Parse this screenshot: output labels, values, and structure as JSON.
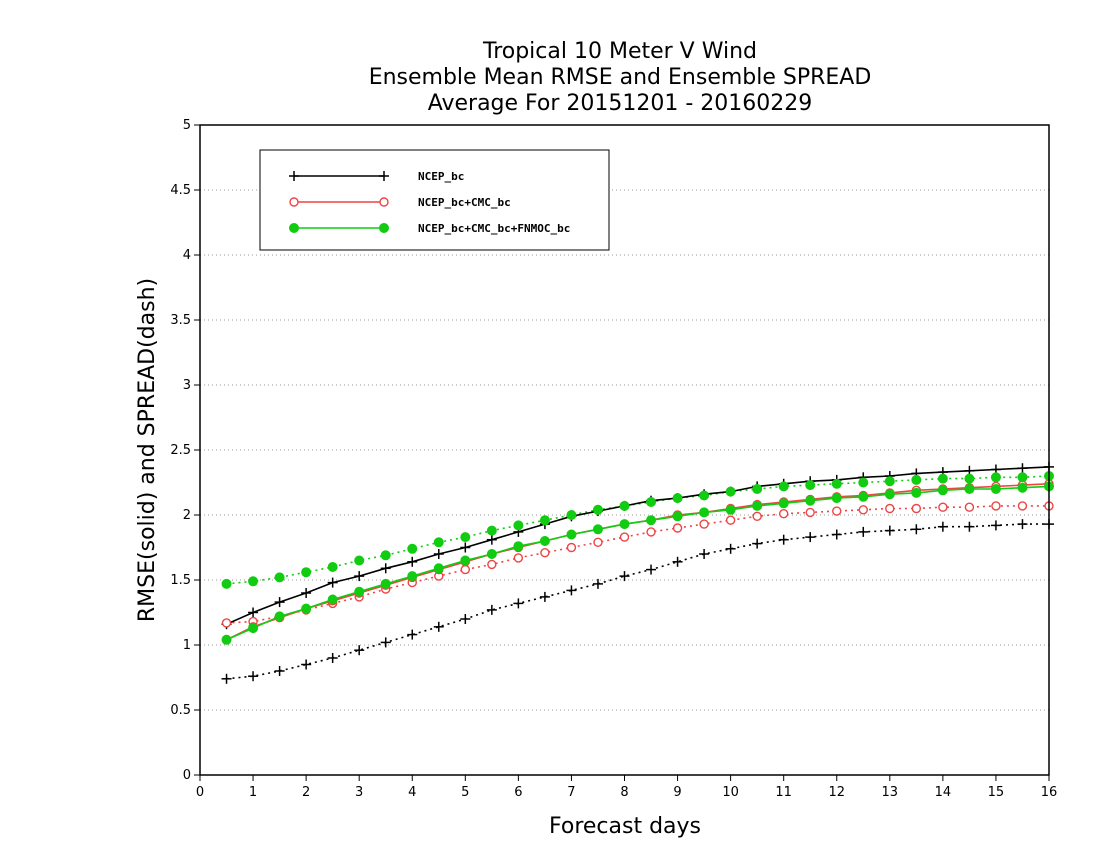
{
  "chart_data": {
    "type": "line",
    "title": [
      "Tropical 10 Meter V Wind",
      "Ensemble Mean RMSE and Ensemble SPREAD",
      "Average For 20151201 - 20160229"
    ],
    "xlabel": "Forecast days",
    "ylabel": "RMSE(solid) and SPREAD(dash)",
    "xlim": [
      0,
      16
    ],
    "ylim": [
      0,
      5
    ],
    "xticks": [
      "0",
      "1",
      "2",
      "3",
      "4",
      "5",
      "6",
      "7",
      "8",
      "9",
      "10",
      "11",
      "12",
      "13",
      "14",
      "15",
      "16"
    ],
    "yticks": [
      "0",
      "0.5",
      "1",
      "1.5",
      "2",
      "2.5",
      "3",
      "3.5",
      "4",
      "4.5",
      "5"
    ],
    "grid": "horizontal dotted",
    "legend_position": "top-left",
    "x": [
      0.5,
      1,
      1.5,
      2,
      2.5,
      3,
      3.5,
      4,
      4.5,
      5,
      5.5,
      6,
      6.5,
      7,
      7.5,
      8,
      8.5,
      9,
      9.5,
      10,
      10.5,
      11,
      11.5,
      12,
      12.5,
      13,
      13.5,
      14,
      14.5,
      15,
      15.5,
      16
    ],
    "series": [
      {
        "name": "NCEP_bc",
        "color": "#000000",
        "marker": "plus",
        "rmse": [
          1.16,
          1.25,
          1.33,
          1.4,
          1.48,
          1.53,
          1.59,
          1.64,
          1.7,
          1.75,
          1.81,
          1.87,
          1.93,
          1.99,
          2.03,
          2.07,
          2.11,
          2.13,
          2.16,
          2.18,
          2.22,
          2.24,
          2.26,
          2.27,
          2.29,
          2.3,
          2.32,
          2.33,
          2.34,
          2.35,
          2.36,
          2.37
        ],
        "spread": [
          0.74,
          0.76,
          0.8,
          0.85,
          0.9,
          0.96,
          1.02,
          1.08,
          1.14,
          1.2,
          1.27,
          1.32,
          1.37,
          1.42,
          1.47,
          1.53,
          1.58,
          1.64,
          1.7,
          1.74,
          1.78,
          1.81,
          1.83,
          1.85,
          1.87,
          1.88,
          1.89,
          1.91,
          1.91,
          1.92,
          1.93,
          1.93
        ]
      },
      {
        "name": "NCEP_bc+CMC_bc",
        "color": "#ee4444",
        "marker": "open-circle",
        "rmse": [
          1.04,
          1.14,
          1.21,
          1.28,
          1.34,
          1.4,
          1.46,
          1.52,
          1.58,
          1.64,
          1.7,
          1.75,
          1.8,
          1.85,
          1.89,
          1.93,
          1.96,
          2.0,
          2.02,
          2.05,
          2.08,
          2.1,
          2.12,
          2.14,
          2.15,
          2.17,
          2.19,
          2.2,
          2.21,
          2.22,
          2.23,
          2.24
        ],
        "spread": [
          1.17,
          1.18,
          1.22,
          1.27,
          1.32,
          1.37,
          1.43,
          1.48,
          1.53,
          1.58,
          1.62,
          1.67,
          1.71,
          1.75,
          1.79,
          1.83,
          1.87,
          1.9,
          1.93,
          1.96,
          1.99,
          2.01,
          2.02,
          2.03,
          2.04,
          2.05,
          2.05,
          2.06,
          2.06,
          2.07,
          2.07,
          2.07
        ]
      },
      {
        "name": "NCEP_bc+CMC_bc+FNMOC_bc",
        "color": "#11cc11",
        "marker": "filled-circle",
        "rmse": [
          1.04,
          1.13,
          1.22,
          1.28,
          1.35,
          1.41,
          1.47,
          1.53,
          1.59,
          1.65,
          1.7,
          1.76,
          1.8,
          1.85,
          1.89,
          1.93,
          1.96,
          1.99,
          2.02,
          2.04,
          2.07,
          2.09,
          2.11,
          2.13,
          2.14,
          2.16,
          2.17,
          2.19,
          2.2,
          2.2,
          2.21,
          2.22
        ],
        "spread": [
          1.47,
          1.49,
          1.52,
          1.56,
          1.6,
          1.65,
          1.69,
          1.74,
          1.79,
          1.83,
          1.88,
          1.92,
          1.96,
          2.0,
          2.04,
          2.07,
          2.1,
          2.13,
          2.15,
          2.18,
          2.2,
          2.22,
          2.23,
          2.24,
          2.25,
          2.26,
          2.27,
          2.28,
          2.28,
          2.29,
          2.29,
          2.3
        ]
      }
    ]
  }
}
